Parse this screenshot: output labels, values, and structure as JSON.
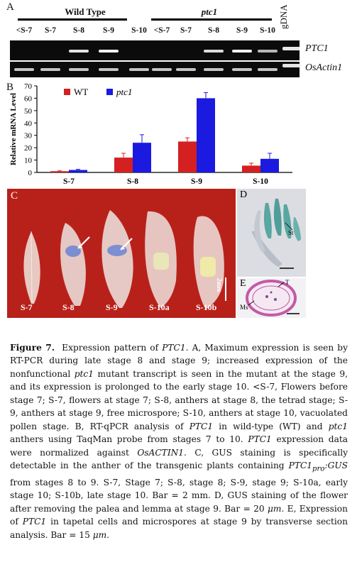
{
  "panel_a": {
    "letter": "A",
    "groups": [
      {
        "label": "Wild Type"
      },
      {
        "label": "ptc1"
      }
    ],
    "lanes": [
      "<S-7",
      "S-7",
      "S-8",
      "S-9",
      "S-10",
      "<S-7",
      "S-7",
      "S-8",
      "S-9",
      "S-10"
    ],
    "gdna_label": "gDNA",
    "gels": [
      {
        "label": "PTC1"
      },
      {
        "label": "OsActin1"
      }
    ]
  },
  "panel_b": {
    "letter": "B",
    "legend": [
      {
        "name": "WT",
        "color": "#d42020"
      },
      {
        "name": "ptc1",
        "color": "#1a1ae0"
      }
    ]
  },
  "chart_data": {
    "type": "bar",
    "categories": [
      "S-7",
      "S-8",
      "S-9",
      "S-10"
    ],
    "series": [
      {
        "name": "WT",
        "color": "#d42020",
        "values": [
          1,
          12,
          25,
          5.5
        ],
        "errors": [
          0.3,
          3.5,
          3,
          2
        ]
      },
      {
        "name": "ptc1",
        "color": "#1a1ae0",
        "values": [
          2,
          24,
          60,
          11
        ],
        "errors": [
          0.5,
          6.5,
          4.5,
          4.5
        ]
      }
    ],
    "ylabel": "Relative mRNA Level",
    "yticks": [
      0,
      10,
      20,
      30,
      40,
      50,
      60,
      70
    ],
    "ylim": [
      0,
      70
    ],
    "legend_position": "top-left"
  },
  "panel_c": {
    "letter": "C",
    "labels": [
      "S-7",
      "S-8",
      "S-9",
      "S-10a",
      "S-10b"
    ],
    "scale": "2mm",
    "background_color": "#b8211a"
  },
  "panel_d": {
    "letter": "D",
    "annotation": "St"
  },
  "panel_e": {
    "letter": "E",
    "annotation_t": "T",
    "annotation_ms": "Ms"
  },
  "caption": {
    "figure_label": "Figure 7.",
    "title_pre": "Expression pattern of ",
    "title_gene": "PTC1",
    "title_post": ".",
    "t_a1": " A, Maximum expression is seen by RT-PCR during late stage 8 and stage 9; increased expression of the nonfunctional ",
    "t_a_ptc1": "ptc1",
    "t_a2": " mutant transcript is seen in the mutant at the stage 9, and its expression is prolonged to the early stage 10. <S-7, Flowers before stage 7; S-7, flowers at stage 7; S-8, anthers at stage 8, the tetrad stage; S-9, anthers at stage 9, free microspore; S-10, anthers at stage 10, vacuolated pollen stage. B, RT-qPCR analysis of ",
    "t_b_gene": "PTC1",
    "t_b1": " in wild-type (WT) and ",
    "t_b_ptc1": "ptc1",
    "t_b2": " anthers using TaqMan probe from stages 7 to 10. ",
    "t_b_gene2": "PTC1",
    "t_b3": " expression data were normalized against ",
    "t_b_actin": "OsACTIN1",
    "t_b4": ". C, GUS staining is specifically detectable in the anther of the transgenic plants containing ",
    "t_c_gene": "PTC1",
    "t_c_sub": "pro",
    "t_c_gus": ":GUS",
    "t_c1": " from stages 8 to 9. S-7, Stage 7; S-8, stage 8; S-9, stage 9; S-10a, early stage 10; S-10b, late stage 10. Bar = 2 mm. D, GUS staining of the flower after removing the palea and lemma at stage 9. Bar = 20 ",
    "t_unit1": "μm",
    "t_d1": ". E, Expression of ",
    "t_e_gene": "PTC1",
    "t_e1": " in tapetal cells and microspores at stage 9 by transverse section analysis. Bar = 15 ",
    "t_unit2": "μm",
    "t_end": "."
  }
}
